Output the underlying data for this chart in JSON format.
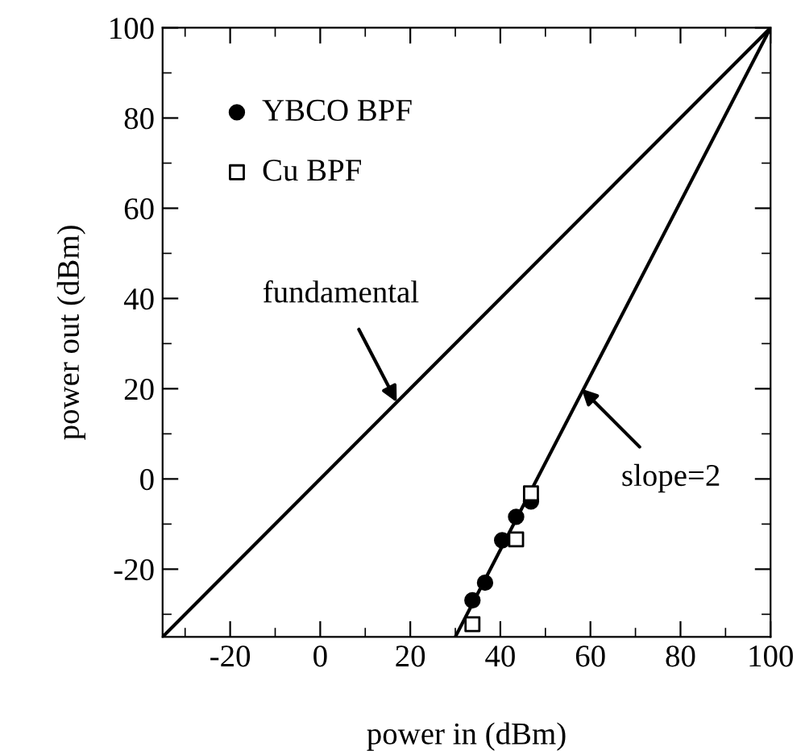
{
  "chart_data": {
    "type": "scatter",
    "xlabel": "power in (dBm)",
    "ylabel": "power out (dBm)",
    "xlim": [
      -35,
      100
    ],
    "ylim": [
      -35,
      100
    ],
    "xticks": [
      -20,
      0,
      20,
      40,
      60,
      80,
      100
    ],
    "yticks": [
      -20,
      0,
      20,
      40,
      60,
      80,
      100
    ],
    "grid": false,
    "legend": "top left",
    "series": [
      {
        "type": "line",
        "color": "#000000",
        "x": [
          -35,
          100
        ],
        "values": [
          -35,
          100
        ],
        "marker": "none",
        "line_style": "solid"
      },
      {
        "type": "line",
        "color": "#000000",
        "x": [
          30,
          100
        ],
        "values": [
          -35,
          100
        ],
        "marker": "none",
        "line_style": "solid"
      },
      {
        "name": "YBCO BPF",
        "color": "#000000",
        "marker": "circle",
        "x": [
          33.8,
          36.6,
          40.4,
          43.5,
          46.8
        ],
        "values": [
          -26.9,
          -23.0,
          -13.6,
          -8.4,
          -5.0
        ]
      },
      {
        "name": "Cu BPF",
        "color": "#000000",
        "marker": "square",
        "x": [
          33.8,
          43.5,
          46.8
        ],
        "values": [
          -32.2,
          -13.4,
          -3.2
        ]
      }
    ],
    "annotations": [
      {
        "text": "fundamental",
        "x": 17,
        "y": 17
      },
      {
        "text": "slope=2",
        "x": 58,
        "y": 20
      }
    ]
  }
}
